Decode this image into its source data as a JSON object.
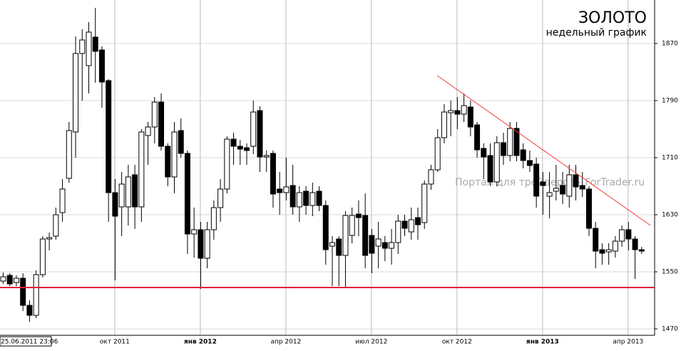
{
  "chart_data": {
    "type": "candlestick",
    "title": "ЗОЛОТО",
    "subtitle": "недельный график",
    "watermark": "Портал для трейдеров - ForTrader.ru",
    "categories": [
      "25.06.2011 23:06",
      null,
      null,
      null,
      null,
      null,
      null,
      null,
      null,
      null,
      null,
      null,
      null,
      null,
      null,
      null,
      null,
      "окт 2011",
      null,
      null,
      null,
      null,
      null,
      null,
      null,
      null,
      null,
      null,
      null,
      null,
      "янв 2012",
      null,
      null,
      null,
      null,
      null,
      null,
      null,
      null,
      null,
      null,
      null,
      null,
      "апр 2012",
      null,
      null,
      null,
      null,
      null,
      null,
      null,
      null,
      null,
      null,
      null,
      null,
      "июл 2012",
      null,
      null,
      null,
      null,
      null,
      null,
      null,
      null,
      null,
      null,
      null,
      null,
      "окт 2012",
      null,
      null,
      null,
      null,
      null,
      null,
      null,
      null,
      null,
      null,
      null,
      null,
      "янв 2013",
      null,
      null,
      null,
      null,
      null,
      null,
      null,
      null,
      null,
      null,
      null,
      null,
      "апр 2013",
      null,
      null
    ],
    "open": [
      1537,
      1545,
      1535,
      1541,
      1503,
      1489,
      1546,
      1596,
      1600,
      1633,
      1681,
      1746,
      1856,
      1839,
      1879,
      1861,
      1818,
      1661,
      1641,
      1641,
      1686,
      1641,
      1741,
      1753,
      1788,
      1726,
      1683,
      1748,
      1716,
      1603,
      1609,
      1569,
      1609,
      1640,
      1666,
      1736,
      1726,
      1724,
      1726,
      1776,
      1711,
      1716,
      1666,
      1661,
      1671,
      1641,
      1663,
      1643,
      1663,
      1643,
      1586,
      1596,
      1573,
      1601,
      1631,
      1629,
      1601,
      1586,
      1591,
      1583,
      1591,
      1621,
      1606,
      1626,
      1619,
      1673,
      1693,
      1738,
      1773,
      1776,
      1771,
      1781,
      1756,
      1723,
      1713,
      1676,
      1731,
      1713,
      1751,
      1721,
      1706,
      1701,
      1676,
      1656,
      1663,
      1671,
      1656,
      1686,
      1671,
      1666,
      1611,
      1581,
      1578,
      1579,
      1593,
      1609,
      1596,
      1581
    ],
    "high": [
      1549,
      1548,
      1545,
      1548,
      1510,
      1552,
      1600,
      1605,
      1640,
      1680,
      1760,
      1880,
      1890,
      1900,
      1920,
      1866,
      1820,
      1680,
      1690,
      1700,
      1700,
      1750,
      1760,
      1795,
      1800,
      1730,
      1760,
      1765,
      1720,
      1640,
      1620,
      1620,
      1650,
      1680,
      1740,
      1745,
      1735,
      1730,
      1790,
      1782,
      1720,
      1720,
      1690,
      1710,
      1700,
      1670,
      1670,
      1675,
      1670,
      1650,
      1600,
      1600,
      1635,
      1640,
      1650,
      1660,
      1610,
      1620,
      1600,
      1610,
      1630,
      1630,
      1640,
      1640,
      1678,
      1700,
      1750,
      1785,
      1790,
      1795,
      1800,
      1790,
      1760,
      1730,
      1730,
      1740,
      1745,
      1760,
      1760,
      1730,
      1720,
      1710,
      1690,
      1690,
      1700,
      1690,
      1700,
      1700,
      1690,
      1670,
      1620,
      1590,
      1590,
      1600,
      1615,
      1620,
      1600,
      1585
    ],
    "low": [
      1533,
      1530,
      1530,
      1495,
      1480,
      1485,
      1542,
      1580,
      1595,
      1620,
      1675,
      1710,
      1790,
      1800,
      1815,
      1780,
      1620,
      1538,
      1600,
      1615,
      1610,
      1620,
      1700,
      1730,
      1720,
      1670,
      1660,
      1710,
      1575,
      1570,
      1526,
      1555,
      1595,
      1620,
      1660,
      1700,
      1700,
      1700,
      1715,
      1690,
      1690,
      1640,
      1630,
      1650,
      1630,
      1620,
      1630,
      1628,
      1635,
      1560,
      1530,
      1530,
      1528,
      1590,
      1600,
      1555,
      1548,
      1555,
      1565,
      1560,
      1575,
      1600,
      1595,
      1595,
      1610,
      1665,
      1690,
      1730,
      1740,
      1750,
      1760,
      1740,
      1710,
      1680,
      1670,
      1670,
      1700,
      1705,
      1705,
      1695,
      1690,
      1640,
      1630,
      1625,
      1650,
      1645,
      1640,
      1650,
      1655,
      1600,
      1555,
      1560,
      1560,
      1570,
      1585,
      1580,
      1540,
      1575
    ],
    "close": [
      1543,
      1533,
      1541,
      1503,
      1489,
      1546,
      1596,
      1598,
      1630,
      1666,
      1748,
      1856,
      1875,
      1886,
      1859,
      1816,
      1661,
      1628,
      1673,
      1683,
      1641,
      1746,
      1753,
      1788,
      1726,
      1683,
      1746,
      1716,
      1603,
      1609,
      1569,
      1609,
      1640,
      1666,
      1736,
      1726,
      1722,
      1720,
      1774,
      1711,
      1713,
      1659,
      1661,
      1669,
      1641,
      1661,
      1643,
      1661,
      1643,
      1581,
      1591,
      1573,
      1629,
      1629,
      1626,
      1573,
      1576,
      1596,
      1583,
      1591,
      1621,
      1611,
      1623,
      1616,
      1673,
      1693,
      1738,
      1774,
      1776,
      1771,
      1783,
      1753,
      1721,
      1711,
      1676,
      1731,
      1713,
      1751,
      1713,
      1706,
      1699,
      1656,
      1671,
      1661,
      1667,
      1659,
      1686,
      1669,
      1666,
      1611,
      1579,
      1576,
      1581,
      1593,
      1609,
      1596,
      1581,
      1579
    ],
    "support_level": 1528,
    "trendline": {
      "x": [
        66,
        98.4
      ],
      "y": [
        1825,
        1615
      ]
    },
    "ylim": [
      1461,
      1931
    ],
    "yticks": [
      1470,
      1550,
      1630,
      1710,
      1790,
      1870
    ],
    "grid": true
  }
}
